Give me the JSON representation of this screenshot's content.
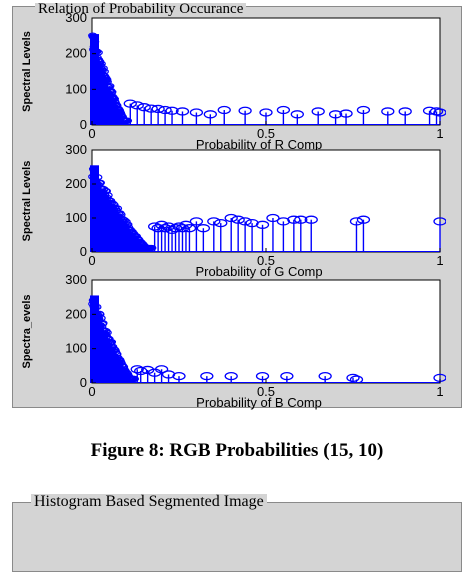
{
  "panel": {
    "title": "Relation of Probability Occurance"
  },
  "caption": "Figure 8: RGB Probabilities (15, 10)",
  "bottom_panel": {
    "title": "Histogram Based Segmented Image"
  },
  "colors": {
    "stem": "#0000ff",
    "axes": "#000000",
    "panel_bg": "#d4d4d4"
  },
  "chart_data": [
    {
      "type": "scatter",
      "marker": "stem",
      "title": "",
      "xlabel": "Probability of R Comp",
      "ylabel": "Spectral Levels",
      "xlim": [
        0,
        1
      ],
      "ylim": [
        0,
        300
      ],
      "xticks": [
        0,
        0.5,
        1
      ],
      "xtick_labels": [
        "0",
        "0.5",
        "1"
      ],
      "yticks": [
        0,
        100,
        200,
        300
      ],
      "ytick_labels": [
        "0",
        "100",
        "200",
        "300"
      ],
      "grid": false,
      "dense_region": {
        "x_max": 0.1,
        "y_max": 255
      },
      "x": [
        0.11,
        0.13,
        0.15,
        0.17,
        0.19,
        0.21,
        0.23,
        0.26,
        0.3,
        0.34,
        0.38,
        0.44,
        0.5,
        0.55,
        0.59,
        0.65,
        0.7,
        0.73,
        0.78,
        0.85,
        0.9,
        0.97,
        0.99,
        1.0
      ],
      "y": [
        60,
        55,
        50,
        46,
        45,
        42,
        40,
        38,
        35,
        30,
        42,
        40,
        35,
        42,
        30,
        38,
        30,
        32,
        42,
        38,
        38,
        40,
        38,
        35
      ]
    },
    {
      "type": "scatter",
      "marker": "stem",
      "title": "",
      "xlabel": "Probability of G Comp",
      "ylabel": "Spectral Levels",
      "xlim": [
        0,
        1
      ],
      "ylim": [
        0,
        300
      ],
      "xticks": [
        0,
        0.5,
        1
      ],
      "xtick_labels": [
        "0",
        "0.5",
        "1"
      ],
      "yticks": [
        0,
        100,
        200,
        300
      ],
      "ytick_labels": [
        "0",
        "100",
        "200",
        "300"
      ],
      "grid": false,
      "dense_region": {
        "x_max": 0.17,
        "y_max": 255
      },
      "x": [
        0.18,
        0.19,
        0.2,
        0.21,
        0.22,
        0.23,
        0.24,
        0.25,
        0.26,
        0.27,
        0.28,
        0.3,
        0.32,
        0.35,
        0.37,
        0.4,
        0.42,
        0.44,
        0.46,
        0.49,
        0.52,
        0.55,
        0.58,
        0.6,
        0.63,
        0.76,
        0.78,
        1.0
      ],
      "y": [
        75,
        70,
        80,
        70,
        75,
        65,
        70,
        75,
        70,
        80,
        70,
        90,
        70,
        90,
        85,
        100,
        95,
        90,
        85,
        80,
        100,
        90,
        95,
        95,
        95,
        90,
        95,
        90
      ]
    },
    {
      "type": "scatter",
      "marker": "stem",
      "title": "",
      "xlabel": "Probability of B Comp",
      "ylabel": "Spectra_evels",
      "xlim": [
        0,
        1
      ],
      "ylim": [
        0,
        300
      ],
      "xticks": [
        0,
        0.5,
        1
      ],
      "xtick_labels": [
        "0",
        "0.5",
        "1"
      ],
      "yticks": [
        0,
        100,
        200,
        300
      ],
      "ytick_labels": [
        "0",
        "100",
        "200",
        "300"
      ],
      "grid": false,
      "dense_region": {
        "x_max": 0.12,
        "y_max": 255
      },
      "x": [
        0.13,
        0.14,
        0.16,
        0.18,
        0.2,
        0.22,
        0.25,
        0.33,
        0.4,
        0.49,
        0.56,
        0.67,
        0.75,
        0.76,
        1.0
      ],
      "y": [
        40,
        35,
        38,
        30,
        40,
        25,
        20,
        20,
        20,
        20,
        20,
        20,
        15,
        10,
        15
      ]
    }
  ]
}
